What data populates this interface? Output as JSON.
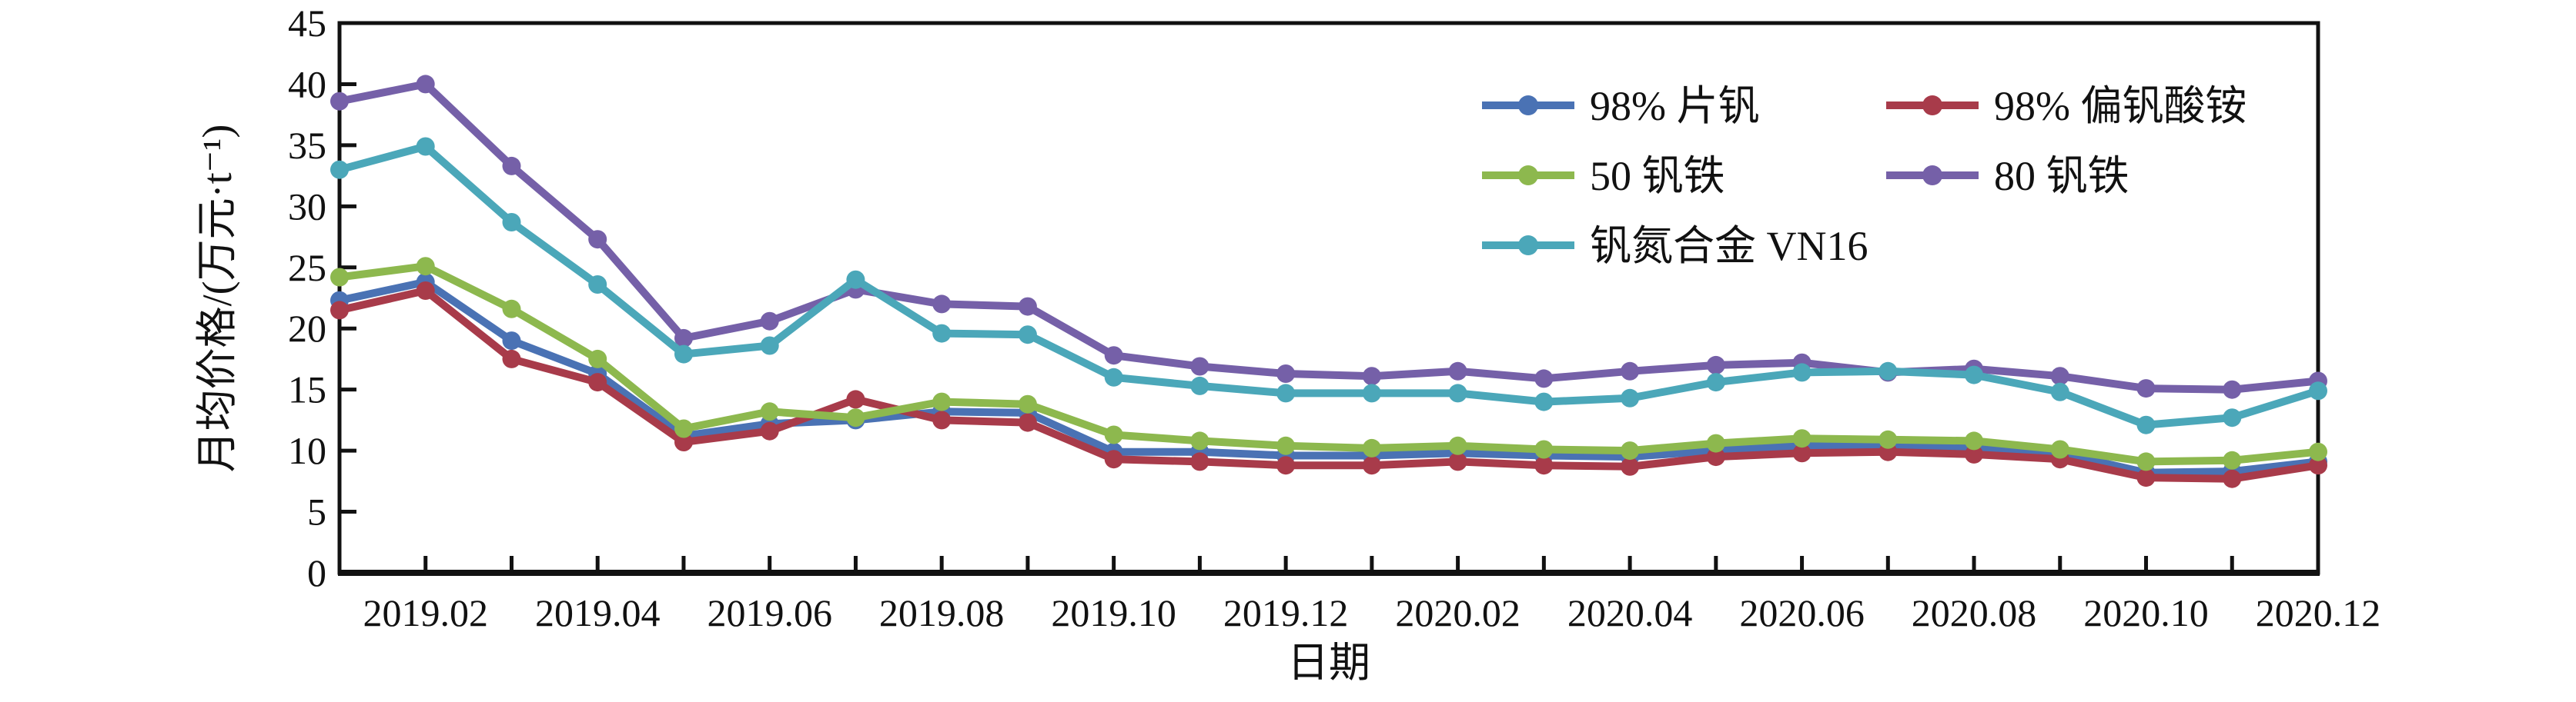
{
  "figure": {
    "background": "#ffffff",
    "axis_color": "#111111"
  },
  "chart_data": {
    "type": "line",
    "title": "",
    "xlabel": "日期",
    "ylabel": "月均价格/(万元·t⁻¹)",
    "ylim": [
      0,
      45
    ],
    "ytick_step": 5,
    "y_tick_labels": [
      "0",
      "5",
      "10",
      "15",
      "20",
      "25",
      "30",
      "35",
      "40",
      "45"
    ],
    "x": [
      "2019.01",
      "2019.02",
      "2019.03",
      "2019.04",
      "2019.05",
      "2019.06",
      "2019.07",
      "2019.08",
      "2019.09",
      "2019.10",
      "2019.11",
      "2019.12",
      "2020.01",
      "2020.02",
      "2020.03",
      "2020.04",
      "2020.05",
      "2020.06",
      "2020.07",
      "2020.08",
      "2020.09",
      "2020.10",
      "2020.11",
      "2020.12"
    ],
    "x_tick_labels_shown": [
      "2019.02",
      "2019.04",
      "2019.06",
      "2019.08",
      "2019.10",
      "2019.12",
      "2020.02",
      "2020.04",
      "2020.06",
      "2020.08",
      "2020.10",
      "2020.12"
    ],
    "grid": false,
    "legend_position": "upper center, 2 columns, inside plot",
    "series": [
      {
        "name": "98% 片钒",
        "color": "#4A72B4",
        "marker": "circle",
        "values": [
          22.3,
          23.8,
          19.0,
          16.3,
          11.2,
          12.2,
          12.5,
          13.2,
          13.1,
          9.9,
          9.9,
          9.6,
          9.6,
          9.8,
          9.6,
          9.5,
          10.0,
          10.4,
          10.4,
          10.3,
          9.8,
          8.2,
          8.3,
          9.1
        ]
      },
      {
        "name": "98% 偏钒酸铵",
        "color": "#A83B4A",
        "marker": "circle",
        "values": [
          21.5,
          23.1,
          17.5,
          15.6,
          10.7,
          11.6,
          14.2,
          12.5,
          12.3,
          9.3,
          9.1,
          8.8,
          8.8,
          9.1,
          8.8,
          8.7,
          9.5,
          9.8,
          9.9,
          9.7,
          9.3,
          7.8,
          7.7,
          8.8
        ]
      },
      {
        "name": "50 钒铁",
        "color": "#8DB84E",
        "marker": "circle",
        "values": [
          24.2,
          25.1,
          21.6,
          17.5,
          11.8,
          13.2,
          12.7,
          14.0,
          13.8,
          11.3,
          10.8,
          10.4,
          10.2,
          10.4,
          10.1,
          10.0,
          10.6,
          11.0,
          10.9,
          10.8,
          10.1,
          9.1,
          9.2,
          9.9
        ]
      },
      {
        "name": "80 钒铁",
        "color": "#7560A8",
        "marker": "circle",
        "values": [
          38.6,
          40.0,
          33.3,
          27.3,
          19.2,
          20.6,
          23.2,
          22.0,
          21.8,
          17.8,
          16.9,
          16.3,
          16.1,
          16.5,
          15.9,
          16.5,
          17.0,
          17.2,
          16.4,
          16.7,
          16.1,
          15.1,
          15.0,
          15.7
        ]
      },
      {
        "name": "钒氮合金 VN16",
        "color": "#4BA7B9",
        "marker": "circle",
        "values": [
          33.0,
          34.9,
          28.7,
          23.6,
          17.9,
          18.6,
          24.0,
          19.6,
          19.5,
          16.0,
          15.3,
          14.7,
          14.7,
          14.7,
          14.0,
          14.3,
          15.6,
          16.4,
          16.5,
          16.2,
          14.8,
          12.1,
          12.7,
          14.9
        ]
      }
    ]
  }
}
